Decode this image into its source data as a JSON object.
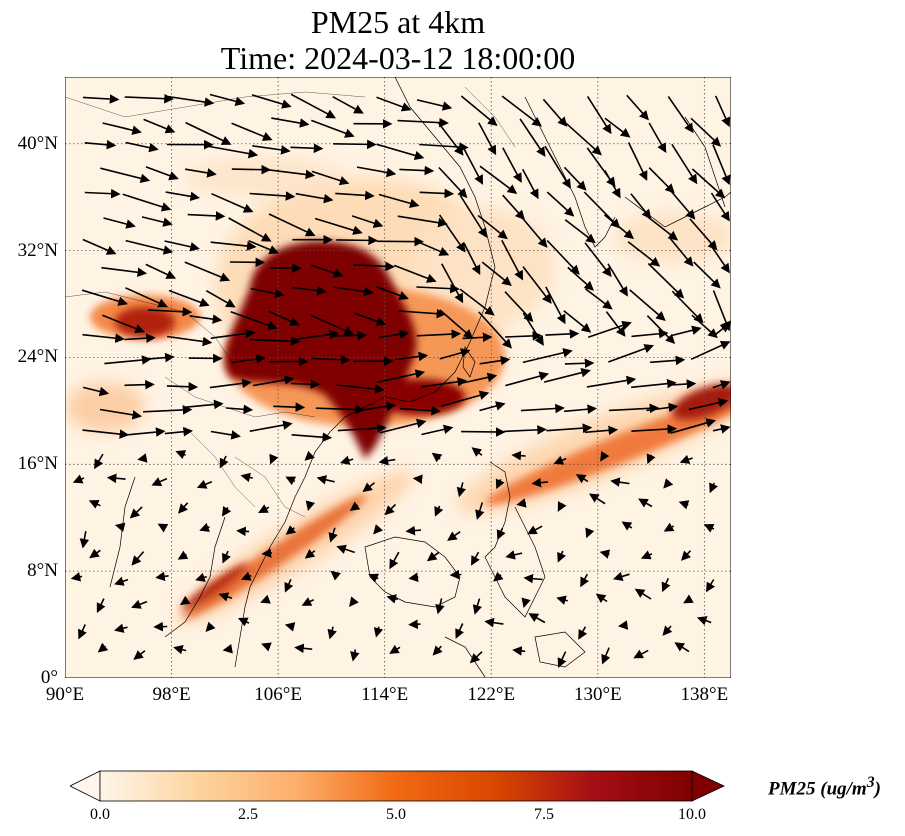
{
  "title_line1": "PM25 at 4km",
  "title_line2": "Time: 2024-03-12 18:00:00",
  "map": {
    "lon_range": [
      90,
      140
    ],
    "lat_range": [
      0,
      45
    ],
    "lat_ticks": [
      {
        "value": 0,
        "label": "0°"
      },
      {
        "value": 8,
        "label": "8°N"
      },
      {
        "value": 16,
        "label": "16°N"
      },
      {
        "value": 24,
        "label": "24°N"
      },
      {
        "value": 32,
        "label": "32°N"
      },
      {
        "value": 40,
        "label": "40°N"
      }
    ],
    "lon_ticks": [
      {
        "value": 90,
        "label": "90°E"
      },
      {
        "value": 98,
        "label": "98°E"
      },
      {
        "value": 106,
        "label": "106°E"
      },
      {
        "value": 114,
        "label": "114°E"
      },
      {
        "value": 122,
        "label": "122°E"
      },
      {
        "value": 130,
        "label": "130°E"
      },
      {
        "value": 138,
        "label": "138°E"
      }
    ],
    "gridlines": true,
    "variable": "PM25",
    "overlay": "wind vectors"
  },
  "colorbar": {
    "min": 0.0,
    "max": 10.0,
    "ticks": [
      "0.0",
      "2.5",
      "5.0",
      "7.5",
      "10.0"
    ],
    "colormap": [
      "#fff5eb",
      "#fdd49e",
      "#fdae6b",
      "#f16913",
      "#d94801",
      "#a50f15",
      "#7f0000"
    ],
    "label": "PM25 (ug/m",
    "label_sup": "3",
    "label_end": ")"
  }
}
